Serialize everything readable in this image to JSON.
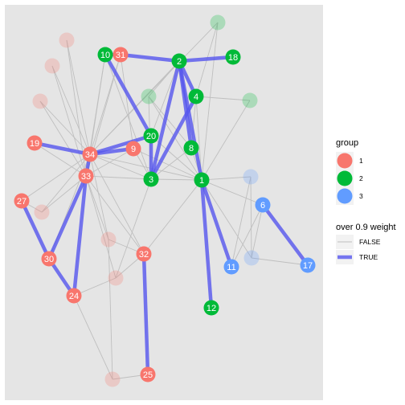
{
  "chart_data": {
    "type": "network",
    "colors": {
      "panel": "#e5e5e5",
      "group_1": "#f8766d",
      "group_2": "#00ba38",
      "group_3": "#619cff",
      "edge_false": "#bfbfbf",
      "edge_true": "#5555ee"
    },
    "nodes": [
      {
        "id": "1",
        "group": "2",
        "label": "1",
        "faded": false
      },
      {
        "id": "2",
        "group": "2",
        "label": "2",
        "faded": false
      },
      {
        "id": "3",
        "group": "2",
        "label": "3",
        "faded": false
      },
      {
        "id": "4",
        "group": "2",
        "label": "4",
        "faded": false
      },
      {
        "id": "6",
        "group": "3",
        "label": "6",
        "faded": false
      },
      {
        "id": "8",
        "group": "2",
        "label": "8",
        "faded": false
      },
      {
        "id": "9",
        "group": "1",
        "label": "9",
        "faded": false
      },
      {
        "id": "10",
        "group": "2",
        "label": "10",
        "faded": false
      },
      {
        "id": "11",
        "group": "3",
        "label": "11",
        "faded": false
      },
      {
        "id": "12",
        "group": "2",
        "label": "12",
        "faded": false
      },
      {
        "id": "17",
        "group": "3",
        "label": "17",
        "faded": false
      },
      {
        "id": "18",
        "group": "2",
        "label": "18",
        "faded": false
      },
      {
        "id": "19",
        "group": "1",
        "label": "19",
        "faded": false
      },
      {
        "id": "20",
        "group": "2",
        "label": "20",
        "faded": false
      },
      {
        "id": "24",
        "group": "1",
        "label": "24",
        "faded": false
      },
      {
        "id": "25",
        "group": "1",
        "label": "25",
        "faded": false
      },
      {
        "id": "27",
        "group": "1",
        "label": "27",
        "faded": false
      },
      {
        "id": "30",
        "group": "1",
        "label": "30",
        "faded": false
      },
      {
        "id": "31",
        "group": "1",
        "label": "31",
        "faded": false
      },
      {
        "id": "32",
        "group": "1",
        "label": "32",
        "faded": false
      },
      {
        "id": "33",
        "group": "1",
        "label": "33",
        "faded": false
      },
      {
        "id": "34",
        "group": "1",
        "label": "34",
        "faded": false
      },
      {
        "id": "f_a",
        "group": "1",
        "label": "",
        "faded": true
      },
      {
        "id": "f_b",
        "group": "1",
        "label": "",
        "faded": true
      },
      {
        "id": "f_c",
        "group": "1",
        "label": "",
        "faded": true
      },
      {
        "id": "f_d",
        "group": "1",
        "label": "",
        "faded": true
      },
      {
        "id": "f_e",
        "group": "1",
        "label": "",
        "faded": true
      },
      {
        "id": "f_f",
        "group": "1",
        "label": "",
        "faded": true
      },
      {
        "id": "f_g",
        "group": "1",
        "label": "",
        "faded": true
      },
      {
        "id": "f_h",
        "group": "2",
        "label": "",
        "faded": true
      },
      {
        "id": "f_i",
        "group": "2",
        "label": "",
        "faded": true
      },
      {
        "id": "f_j",
        "group": "2",
        "label": "",
        "faded": true
      },
      {
        "id": "f_k",
        "group": "3",
        "label": "",
        "faded": true
      },
      {
        "id": "f_l",
        "group": "3",
        "label": "",
        "faded": true
      }
    ],
    "edges": [
      {
        "source": "10",
        "target": "31",
        "weight_over_0_9": true
      },
      {
        "source": "31",
        "target": "2",
        "weight_over_0_9": true
      },
      {
        "source": "2",
        "target": "18",
        "weight_over_0_9": true
      },
      {
        "source": "2",
        "target": "3",
        "weight_over_0_9": true
      },
      {
        "source": "2",
        "target": "4",
        "weight_over_0_9": true
      },
      {
        "source": "2",
        "target": "8",
        "weight_over_0_9": true
      },
      {
        "source": "2",
        "target": "1",
        "weight_over_0_9": true
      },
      {
        "source": "4",
        "target": "3",
        "weight_over_0_9": true
      },
      {
        "source": "10",
        "target": "20",
        "weight_over_0_9": true
      },
      {
        "source": "20",
        "target": "3",
        "weight_over_0_9": true
      },
      {
        "source": "34",
        "target": "20",
        "weight_over_0_9": true
      },
      {
        "source": "19",
        "target": "34",
        "weight_over_0_9": true
      },
      {
        "source": "34",
        "target": "9",
        "weight_over_0_9": true
      },
      {
        "source": "33",
        "target": "34",
        "weight_over_0_9": true
      },
      {
        "source": "33",
        "target": "30",
        "weight_over_0_9": true
      },
      {
        "source": "33",
        "target": "24",
        "weight_over_0_9": true
      },
      {
        "source": "27",
        "target": "30",
        "weight_over_0_9": true
      },
      {
        "source": "30",
        "target": "24",
        "weight_over_0_9": true
      },
      {
        "source": "32",
        "target": "25",
        "weight_over_0_9": true
      },
      {
        "source": "1",
        "target": "11",
        "weight_over_0_9": true
      },
      {
        "source": "1",
        "target": "12",
        "weight_over_0_9": true
      },
      {
        "source": "6",
        "target": "17",
        "weight_over_0_9": true
      },
      {
        "source": "1",
        "target": "f_h",
        "weight_over_0_9": false
      },
      {
        "source": "1",
        "target": "f_j",
        "weight_over_0_9": false
      },
      {
        "source": "1",
        "target": "f_i",
        "weight_over_0_9": false
      },
      {
        "source": "1",
        "target": "f_k",
        "weight_over_0_9": false
      },
      {
        "source": "1",
        "target": "f_l",
        "weight_over_0_9": false
      },
      {
        "source": "1",
        "target": "3",
        "weight_over_0_9": false
      },
      {
        "source": "1",
        "target": "8",
        "weight_over_0_9": false
      },
      {
        "source": "1",
        "target": "4",
        "weight_over_0_9": false
      },
      {
        "source": "1",
        "target": "9",
        "weight_over_0_9": false
      },
      {
        "source": "1",
        "target": "32",
        "weight_over_0_9": false
      },
      {
        "source": "1",
        "target": "20",
        "weight_over_0_9": false
      },
      {
        "source": "1",
        "target": "34",
        "weight_over_0_9": false
      },
      {
        "source": "1",
        "target": "6",
        "weight_over_0_9": false
      },
      {
        "source": "2",
        "target": "f_h",
        "weight_over_0_9": false
      },
      {
        "source": "2",
        "target": "34",
        "weight_over_0_9": false
      },
      {
        "source": "2",
        "target": "20",
        "weight_over_0_9": false
      },
      {
        "source": "f_i",
        "target": "4",
        "weight_over_0_9": false
      },
      {
        "source": "f_j",
        "target": "4",
        "weight_over_0_9": false
      },
      {
        "source": "f_i",
        "target": "34",
        "weight_over_0_9": false
      },
      {
        "source": "34",
        "target": "f_a",
        "weight_over_0_9": false
      },
      {
        "source": "34",
        "target": "f_b",
        "weight_over_0_9": false
      },
      {
        "source": "34",
        "target": "f_c",
        "weight_over_0_9": false
      },
      {
        "source": "34",
        "target": "10",
        "weight_over_0_9": false
      },
      {
        "source": "34",
        "target": "31",
        "weight_over_0_9": false
      },
      {
        "source": "34",
        "target": "3",
        "weight_over_0_9": false
      },
      {
        "source": "34",
        "target": "f_d",
        "weight_over_0_9": false
      },
      {
        "source": "34",
        "target": "f_e",
        "weight_over_0_9": false
      },
      {
        "source": "34",
        "target": "27",
        "weight_over_0_9": false
      },
      {
        "source": "34",
        "target": "32",
        "weight_over_0_9": false
      },
      {
        "source": "34",
        "target": "30",
        "weight_over_0_9": false
      },
      {
        "source": "33",
        "target": "f_a",
        "weight_over_0_9": false
      },
      {
        "source": "33",
        "target": "f_b",
        "weight_over_0_9": false
      },
      {
        "source": "33",
        "target": "f_c",
        "weight_over_0_9": false
      },
      {
        "source": "33",
        "target": "10",
        "weight_over_0_9": false
      },
      {
        "source": "33",
        "target": "31",
        "weight_over_0_9": false
      },
      {
        "source": "33",
        "target": "9",
        "weight_over_0_9": false
      },
      {
        "source": "33",
        "target": "19",
        "weight_over_0_9": false
      },
      {
        "source": "33",
        "target": "f_d",
        "weight_over_0_9": false
      },
      {
        "source": "33",
        "target": "3",
        "weight_over_0_9": false
      },
      {
        "source": "33",
        "target": "32",
        "weight_over_0_9": false
      },
      {
        "source": "33",
        "target": "f_e",
        "weight_over_0_9": false
      },
      {
        "source": "33",
        "target": "f_f",
        "weight_over_0_9": false
      },
      {
        "source": "3",
        "target": "9",
        "weight_over_0_9": false
      },
      {
        "source": "3",
        "target": "f_h",
        "weight_over_0_9": false
      },
      {
        "source": "3",
        "target": "8",
        "weight_over_0_9": false
      },
      {
        "source": "3",
        "target": "f_f",
        "weight_over_0_9": false
      },
      {
        "source": "32",
        "target": "f_e",
        "weight_over_0_9": false
      },
      {
        "source": "32",
        "target": "f_f",
        "weight_over_0_9": false
      },
      {
        "source": "24",
        "target": "f_f",
        "weight_over_0_9": false
      },
      {
        "source": "24",
        "target": "f_g",
        "weight_over_0_9": false
      },
      {
        "source": "f_e",
        "target": "f_g",
        "weight_over_0_9": false
      },
      {
        "source": "f_g",
        "target": "25",
        "weight_over_0_9": false
      },
      {
        "source": "f_d",
        "target": "27",
        "weight_over_0_9": false
      },
      {
        "source": "8",
        "target": "f_h",
        "weight_over_0_9": false
      },
      {
        "source": "4",
        "target": "8",
        "weight_over_0_9": false
      },
      {
        "source": "6",
        "target": "f_l",
        "weight_over_0_9": false
      },
      {
        "source": "6",
        "target": "11",
        "weight_over_0_9": false
      },
      {
        "source": "f_k",
        "target": "f_l",
        "weight_over_0_9": false
      },
      {
        "source": "f_l",
        "target": "17",
        "weight_over_0_9": false
      },
      {
        "source": "f_k",
        "target": "11",
        "weight_over_0_9": false
      },
      {
        "source": "10",
        "target": "3",
        "weight_over_0_9": false
      },
      {
        "source": "9",
        "target": "31",
        "weight_over_0_9": false
      }
    ],
    "legend": {
      "group_title": "group",
      "groups": [
        "1",
        "2",
        "3"
      ],
      "weight_title": "over 0.9 weight",
      "weight_values": [
        "FALSE",
        "TRUE"
      ],
      "position": "right"
    }
  }
}
